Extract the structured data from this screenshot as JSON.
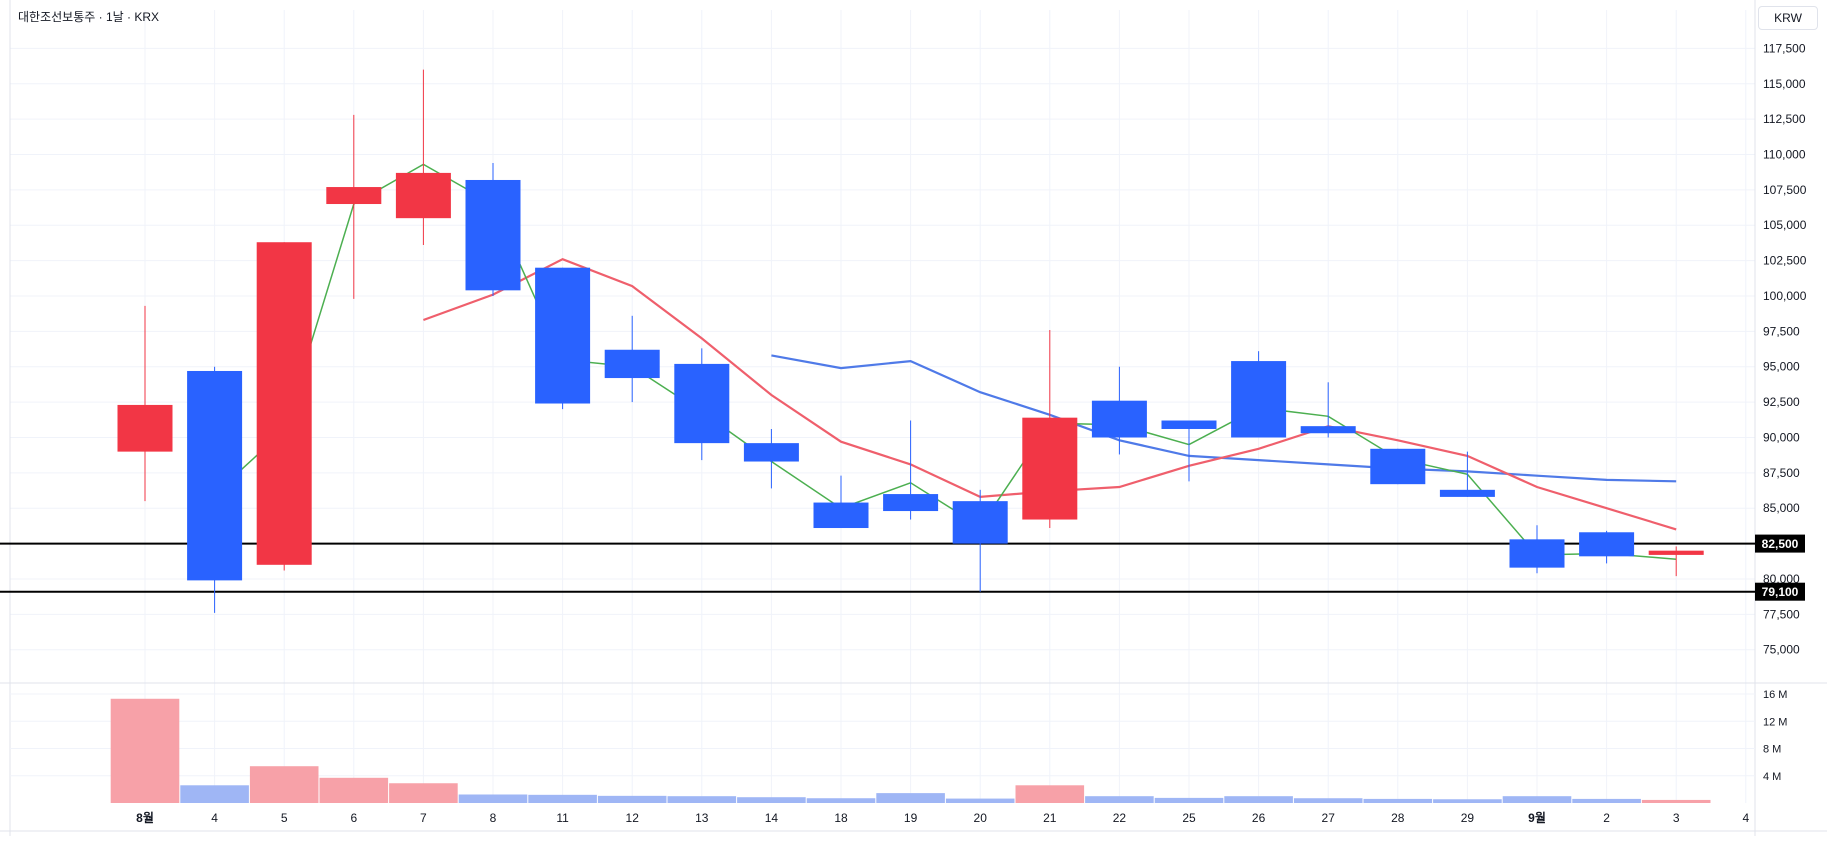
{
  "header": {
    "title": "대한조선보통주 · 1날 · KRX",
    "currency_label": "KRW"
  },
  "colors": {
    "up": "#f23645",
    "down": "#2962ff",
    "vol_up": "#f7a1a8",
    "vol_down": "#9fb6f5",
    "ma_short": "#4caf50",
    "ma_mid": "#ef5f6c",
    "ma_long": "#4f7ae8",
    "grid": "#f0f3fa",
    "text": "#131722"
  },
  "chart_data": {
    "type": "candlestick",
    "title": "대한조선보통주 · 1날 · KRX",
    "y_axis": {
      "min": 73000,
      "max": 118800,
      "ticks": [
        "117,500",
        "115,000",
        "112,500",
        "110,000",
        "107,500",
        "105,000",
        "102,500",
        "100,000",
        "97,500",
        "95,000",
        "92,500",
        "90,000",
        "87,500",
        "85,000",
        "80,000",
        "77,500",
        "75,000"
      ],
      "tick_values": [
        117500,
        115000,
        112500,
        110000,
        107500,
        105000,
        102500,
        100000,
        97500,
        95000,
        92500,
        90000,
        87500,
        85000,
        80000,
        77500,
        75000
      ],
      "side": "right"
    },
    "x_axis": {
      "labels": [
        "8월",
        "4",
        "5",
        "6",
        "7",
        "8",
        "11",
        "12",
        "13",
        "14",
        "18",
        "19",
        "20",
        "21",
        "22",
        "25",
        "26",
        "27",
        "28",
        "29",
        "9월",
        "2",
        "3",
        "4"
      ],
      "bold": [
        "8월",
        "9월"
      ]
    },
    "candles": [
      {
        "label": "8월",
        "open": 89000,
        "high": 99300,
        "low": 85500,
        "close": 92300
      },
      {
        "label": "4",
        "open": 94700,
        "high": 95000,
        "low": 77600,
        "close": 79900
      },
      {
        "label": "5",
        "open": 81000,
        "high": 103800,
        "low": 80600,
        "close": 103800
      },
      {
        "label": "6",
        "open": 106500,
        "high": 112800,
        "low": 99800,
        "close": 107700
      },
      {
        "label": "7",
        "open": 105500,
        "high": 116000,
        "low": 103600,
        "close": 108700
      },
      {
        "label": "8",
        "open": 108200,
        "high": 109400,
        "low": 100000,
        "close": 100400
      },
      {
        "label": "11",
        "open": 102000,
        "high": 102000,
        "low": 92000,
        "close": 92400
      },
      {
        "label": "12",
        "open": 96200,
        "high": 98600,
        "low": 92500,
        "close": 94200
      },
      {
        "label": "13",
        "open": 95200,
        "high": 96300,
        "low": 88400,
        "close": 89600
      },
      {
        "label": "14",
        "open": 89600,
        "high": 90600,
        "low": 86400,
        "close": 88300
      },
      {
        "label": "18",
        "open": 85400,
        "high": 87300,
        "low": 83600,
        "close": 83600
      },
      {
        "label": "19",
        "open": 86000,
        "high": 91200,
        "low": 84200,
        "close": 84800
      },
      {
        "label": "20",
        "open": 85500,
        "high": 86300,
        "low": 79100,
        "close": 82500
      },
      {
        "label": "21",
        "open": 84200,
        "high": 97600,
        "low": 83600,
        "close": 91400
      },
      {
        "label": "22",
        "open": 92600,
        "high": 95000,
        "low": 88800,
        "close": 90000
      },
      {
        "label": "25",
        "open": 91200,
        "high": 91200,
        "low": 86900,
        "close": 90600
      },
      {
        "label": "26",
        "open": 95400,
        "high": 96100,
        "low": 90000,
        "close": 90000
      },
      {
        "label": "27",
        "open": 90800,
        "high": 93900,
        "low": 90000,
        "close": 90300
      },
      {
        "label": "28",
        "open": 89200,
        "high": 89200,
        "low": 86700,
        "close": 86700
      },
      {
        "label": "29",
        "open": 86300,
        "high": 89000,
        "low": 85800,
        "close": 85800
      },
      {
        "label": "9월",
        "open": 82800,
        "high": 83800,
        "low": 80400,
        "close": 80800
      },
      {
        "label": "2",
        "open": 83300,
        "high": 83400,
        "low": 81100,
        "close": 81600
      },
      {
        "label": "3",
        "open": 81700,
        "high": 82300,
        "low": 80200,
        "close": 82000
      }
    ],
    "ma_short": [
      null,
      86000,
      90500,
      106500,
      109300,
      106500,
      95500,
      95000,
      91800,
      88300,
      85000,
      86800,
      83700,
      91000,
      90900,
      89500,
      92100,
      91500,
      88500,
      87400,
      81700,
      81800,
      81400
    ],
    "ma_mid": [
      null,
      null,
      null,
      null,
      98300,
      100100,
      102600,
      100700,
      97000,
      93000,
      89700,
      88100,
      85800,
      86200,
      86500,
      88000,
      89200,
      90800,
      89800,
      88700,
      86500,
      85000,
      83500
    ],
    "ma_long": [
      null,
      null,
      null,
      null,
      null,
      null,
      null,
      null,
      null,
      95800,
      94900,
      95400,
      93200,
      91600,
      89800,
      88700,
      88400,
      88100,
      87800,
      87600,
      87300,
      87000,
      86900
    ],
    "price_lines": [
      {
        "value": 82500,
        "label": "82,500"
      },
      {
        "value": 79100,
        "label": "79,100"
      }
    ],
    "volume": {
      "ticks": [
        "16 M",
        "12 M",
        "8 M",
        "4 M"
      ],
      "tick_values": [
        16,
        12,
        8,
        4
      ],
      "max": 16,
      "unit": "M",
      "values": [
        15.3,
        2.6,
        5.4,
        3.7,
        2.9,
        1.25,
        1.2,
        1.05,
        1.0,
        0.85,
        0.7,
        1.45,
        0.65,
        2.6,
        1.0,
        0.75,
        1.0,
        0.7,
        0.6,
        0.55,
        1.0,
        0.6,
        0.45
      ],
      "up": [
        true,
        false,
        true,
        true,
        true,
        false,
        false,
        false,
        false,
        false,
        false,
        false,
        false,
        true,
        false,
        false,
        false,
        false,
        false,
        false,
        false,
        false,
        true
      ]
    },
    "grid": true
  }
}
